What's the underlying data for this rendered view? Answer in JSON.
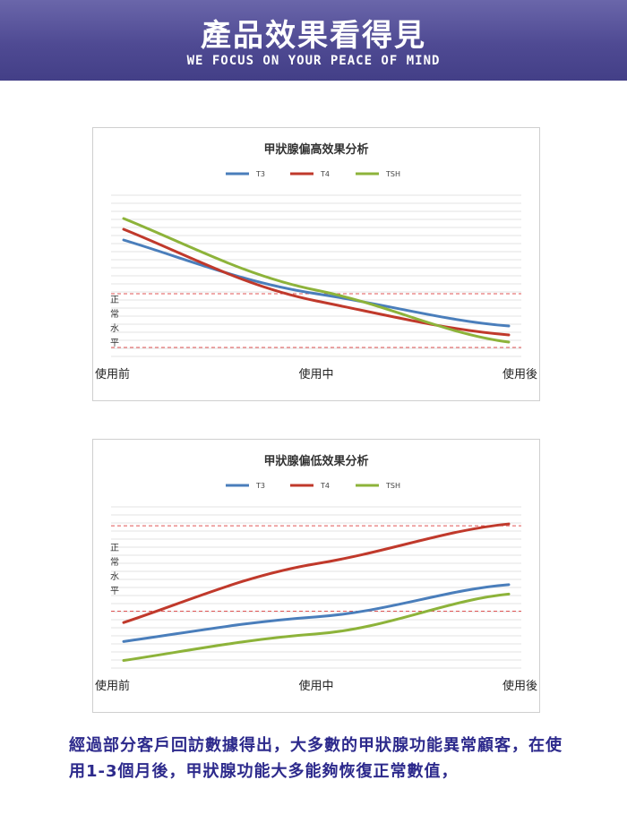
{
  "header": {
    "title": "產品效果看得見",
    "subtitle": "WE FOCUS ON YOUR PEACE OF MIND"
  },
  "chart_data": [
    {
      "type": "line",
      "title": "甲狀腺偏高效果分析",
      "categories": [
        "使用前",
        "使用中",
        "使用後"
      ],
      "y_band_label": "正常水平",
      "normal_range": [
        30,
        60
      ],
      "ylim": [
        25,
        115
      ],
      "grid": true,
      "legend_position": "top",
      "series": [
        {
          "name": "T3",
          "color": "#4a7ebb",
          "values": [
            90,
            60,
            42
          ]
        },
        {
          "name": "T4",
          "color": "#c0392b",
          "values": [
            96,
            56,
            37
          ]
        },
        {
          "name": "TSH",
          "color": "#8db33a",
          "values": [
            102,
            62,
            33
          ]
        }
      ]
    },
    {
      "type": "line",
      "title": "甲狀腺偏低效果分析",
      "categories": [
        "使用前",
        "使用中",
        "使用後"
      ],
      "y_band_label": "正常水平",
      "normal_range": [
        40,
        85
      ],
      "ylim": [
        10,
        95
      ],
      "grid": true,
      "legend_position": "top",
      "series": [
        {
          "name": "T3",
          "color": "#4a7ebb",
          "values": [
            24,
            37,
            54
          ]
        },
        {
          "name": "T4",
          "color": "#c0392b",
          "values": [
            34,
            65,
            86
          ]
        },
        {
          "name": "TSH",
          "color": "#8db33a",
          "values": [
            14,
            28,
            49
          ]
        }
      ]
    }
  ],
  "footer": {
    "text": "經過部分客戶回訪數據得出，大多數的甲狀腺功能異常顧客，在使用1-3個月後，甲狀腺功能大多能夠恢復正常數值，"
  }
}
